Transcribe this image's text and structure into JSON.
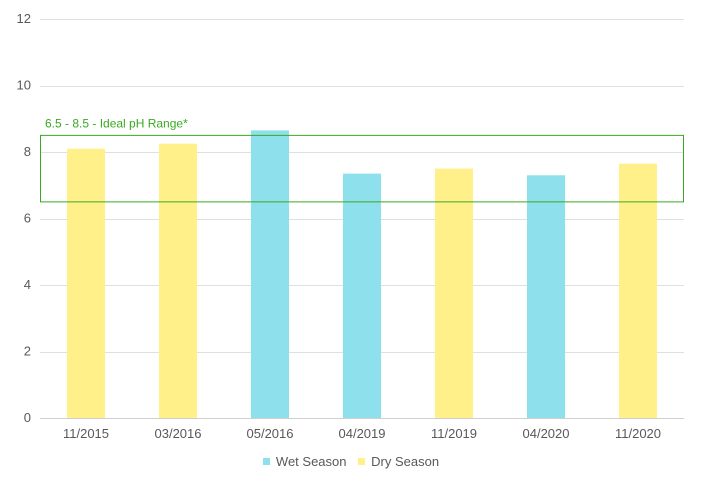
{
  "chart_data": {
    "type": "bar",
    "categories": [
      "11/2015",
      "03/2016",
      "05/2016",
      "04/2019",
      "11/2019",
      "04/2020",
      "11/2020"
    ],
    "values": [
      8.1,
      8.25,
      8.65,
      7.35,
      7.5,
      7.3,
      7.65
    ],
    "seasons": [
      "Dry Season",
      "Dry Season",
      "Wet Season",
      "Wet Season",
      "Dry Season",
      "Wet Season",
      "Dry Season"
    ],
    "series": [
      {
        "name": "Wet Season",
        "color": "#8de0ec"
      },
      {
        "name": "Dry Season",
        "color": "#fff08a"
      }
    ],
    "ylim": [
      0,
      12
    ],
    "yticks": [
      0,
      2,
      4,
      6,
      8,
      10,
      12
    ],
    "grid": true,
    "legend_position": "bottom",
    "annotation": {
      "text": "6.5 - 8.5 - Ideal pH Range*",
      "range": [
        6.5,
        8.5
      ],
      "color": "#3aa820"
    }
  }
}
